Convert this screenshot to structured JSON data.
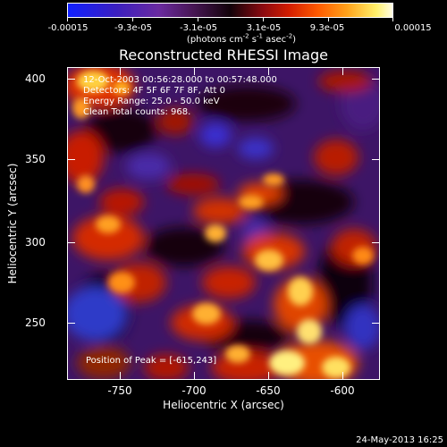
{
  "colorbar": {
    "labels": [
      "-0.00015",
      "-9.3e-05",
      "-3.1e-05",
      "3.1e-05",
      "9.3e-05",
      "0.00015"
    ],
    "units_prefix": "(photons cm",
    "units_exp1": "-2",
    "units_mid1": " s",
    "units_exp2": "-1",
    "units_mid2": " asec",
    "units_exp3": "-2",
    "units_suffix": ")"
  },
  "title": "Reconstructed RHESSI Image",
  "info": {
    "time_range": "12-Oct-2003 00:56:28.000 to 00:57:48.000",
    "detectors": "Detectors: 4F 5F 6F 7F 8F, Att 0",
    "energy": "Energy Range: 25.0 - 50.0 keV",
    "clean": "Clean    Total counts: 968."
  },
  "peak": "Position of Peak = [-615,243]",
  "axes": {
    "xlabel": "Heliocentric X (arcsec)",
    "ylabel": "Heliocentric Y (arcsec)",
    "xticks": [
      "-750",
      "-700",
      "-650",
      "-600"
    ],
    "yticks": [
      "400",
      "350",
      "300",
      "250"
    ]
  },
  "footer_date": "24-May-2013 16:25",
  "colors": {
    "background": "#000000",
    "text": "#ffffff"
  }
}
